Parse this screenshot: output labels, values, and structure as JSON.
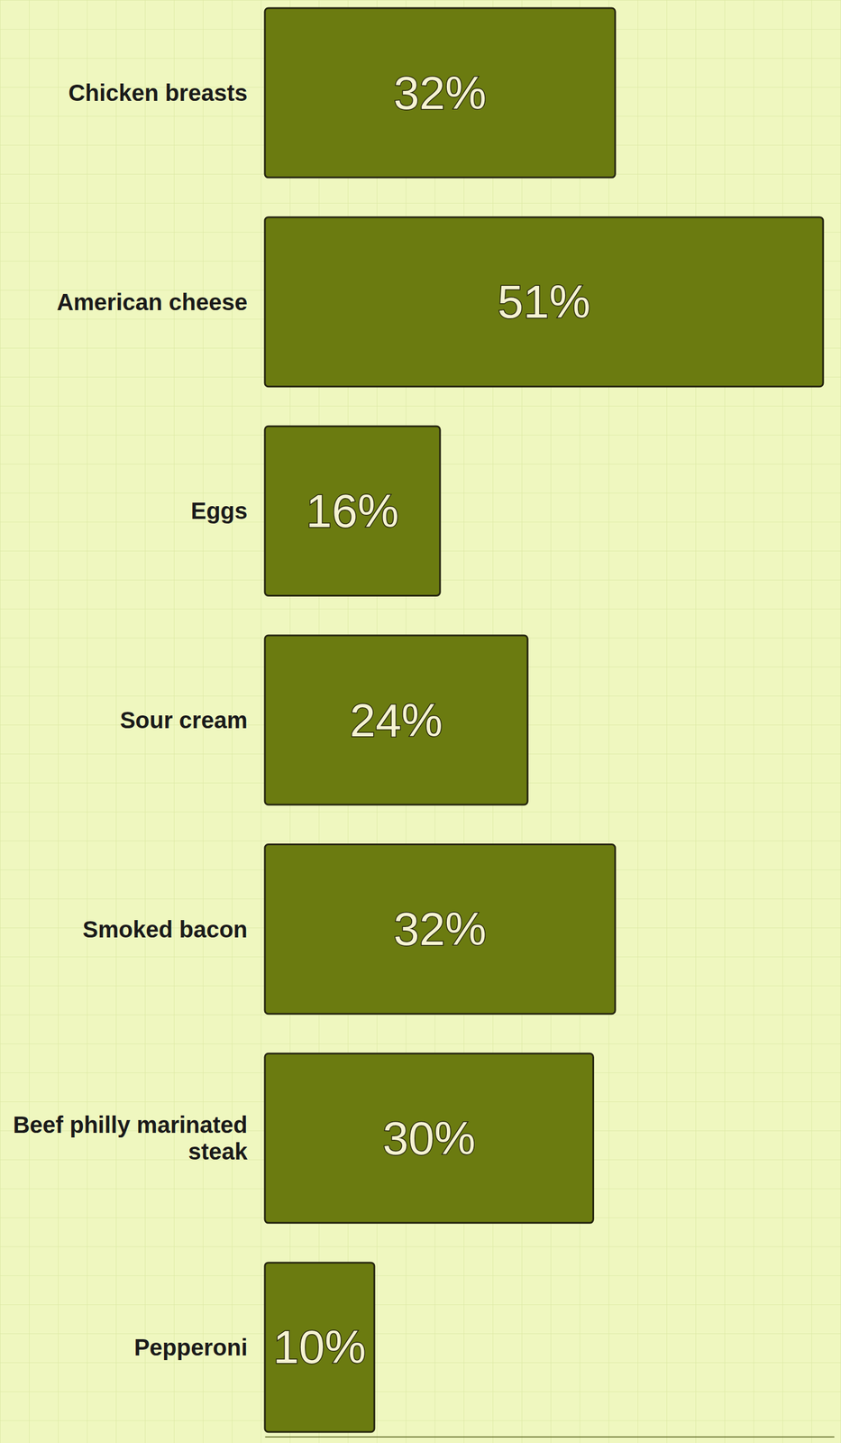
{
  "chart_data": {
    "type": "bar",
    "orientation": "horizontal",
    "categories": [
      "Chicken breasts",
      "American cheese",
      "Eggs",
      "Sour cream",
      "Smoked bacon",
      "Beef philly marinated steak",
      "Pepperoni"
    ],
    "values": [
      32,
      51,
      16,
      24,
      32,
      30,
      10
    ],
    "value_labels": [
      "32%",
      "51%",
      "16%",
      "24%",
      "32%",
      "30%",
      "10%"
    ],
    "data_labels": true,
    "tick_labels": false,
    "xlim": [
      0,
      52
    ],
    "color": "#6b7b10"
  }
}
